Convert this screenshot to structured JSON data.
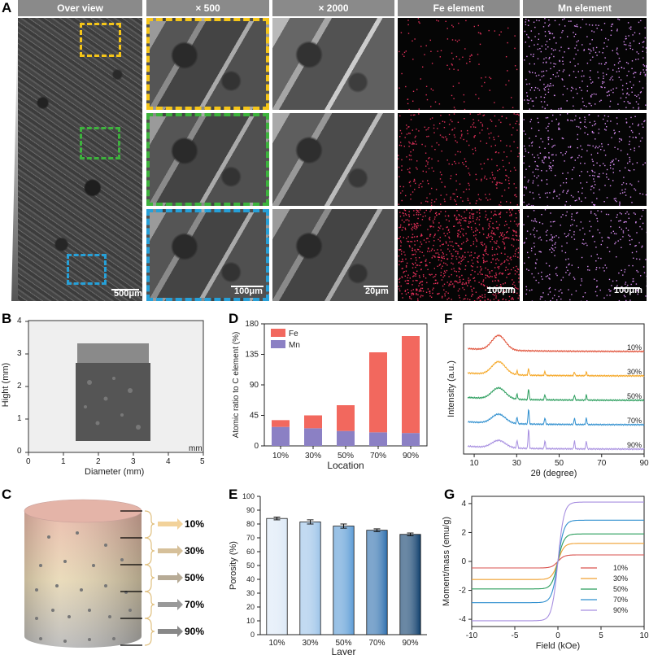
{
  "panel_labels": {
    "a": "A",
    "b": "B",
    "c": "C",
    "d": "D",
    "e": "E",
    "f": "F",
    "g": "G"
  },
  "panel_a": {
    "headers": [
      "Over view",
      "× 500",
      "× 2000",
      "Fe element",
      "Mn element"
    ],
    "scalebars": [
      "500μm",
      "100μm",
      "20μm",
      "100μm",
      "100μm"
    ]
  },
  "panel_b": {
    "ylabel": "Hight (mm)",
    "xlabel": "Diameter (mm)",
    "unit": "mm",
    "xticks": [
      "0",
      "1",
      "2",
      "3",
      "4",
      "5"
    ],
    "yticks": [
      "0",
      "1",
      "2",
      "3",
      "4"
    ]
  },
  "panel_c": {
    "labels": [
      "10%",
      "30%",
      "50%",
      "70%",
      "90%"
    ]
  },
  "colors": {
    "fe": "#f2685e",
    "mn": "#8b80c4",
    "accent_yellow": "#f5c518",
    "accent_green": "#3db33d",
    "accent_blue": "#26a0d8"
  },
  "chart_data": [
    {
      "type": "bar",
      "panel": "D",
      "categories": [
        "10%",
        "30%",
        "50%",
        "70%",
        "90%"
      ],
      "stacked": true,
      "series": [
        {
          "name": "Mn",
          "values": [
            28,
            26,
            22,
            20,
            19
          ]
        },
        {
          "name": "Fe",
          "values": [
            10,
            19,
            38,
            118,
            143
          ]
        }
      ],
      "xlabel": "Location",
      "ylabel": "Atomic ratio to C element (%)",
      "ylim": [
        0,
        180
      ],
      "yticks": [
        "0",
        "45",
        "90",
        "135",
        "180"
      ],
      "legend": "top-left"
    },
    {
      "type": "bar",
      "panel": "E",
      "categories": [
        "10%",
        "30%",
        "50%",
        "70%",
        "90%"
      ],
      "values": [
        84,
        81.5,
        78.5,
        75.5,
        72.5
      ],
      "errors": [
        1,
        1.5,
        1.5,
        1,
        1
      ],
      "colors": [
        "#dbe8f6",
        "#9cc3e8",
        "#5b9bd5",
        "#2e6fae",
        "#0d3d6b"
      ],
      "xlabel": "Layer",
      "ylabel": "Porosity (%)",
      "ylim": [
        0,
        100
      ],
      "yticks": [
        "0",
        "10",
        "20",
        "30",
        "40",
        "50",
        "60",
        "70",
        "80",
        "90",
        "100"
      ]
    },
    {
      "type": "line",
      "panel": "F",
      "xlabel": "2θ (degree)",
      "ylabel": "Intensity (a.u.)",
      "xlim": [
        5,
        90
      ],
      "xticks": [
        "10",
        "30",
        "50",
        "70",
        "90"
      ],
      "series": [
        {
          "name": "10%",
          "color": "#e0523a"
        },
        {
          "name": "30%",
          "color": "#f5a623"
        },
        {
          "name": "50%",
          "color": "#2a9d5c"
        },
        {
          "name": "70%",
          "color": "#2f8fcf"
        },
        {
          "name": "90%",
          "color": "#a78fe0"
        }
      ],
      "peak_positions": [
        21.5,
        30.2,
        35.6,
        43.3,
        57.2,
        62.8
      ]
    },
    {
      "type": "line",
      "panel": "G",
      "xlabel": "Field (kOe)",
      "ylabel": "Moment/mass (emu/g)",
      "xlim": [
        -10,
        10
      ],
      "ylim": [
        -4.5,
        4.5
      ],
      "xticks": [
        "-10",
        "-5",
        "0",
        "5",
        "10"
      ],
      "yticks": [
        "-4",
        "-2",
        "0",
        "2",
        "4"
      ],
      "legend": "bottom-right",
      "series": [
        {
          "name": "10%",
          "color": "#d9534f",
          "ms": 0.45
        },
        {
          "name": "30%",
          "color": "#f0a030",
          "ms": 1.25
        },
        {
          "name": "50%",
          "color": "#2a9d5c",
          "ms": 1.9
        },
        {
          "name": "70%",
          "color": "#2f8fcf",
          "ms": 2.85
        },
        {
          "name": "90%",
          "color": "#a78fe0",
          "ms": 4.1
        }
      ]
    }
  ]
}
